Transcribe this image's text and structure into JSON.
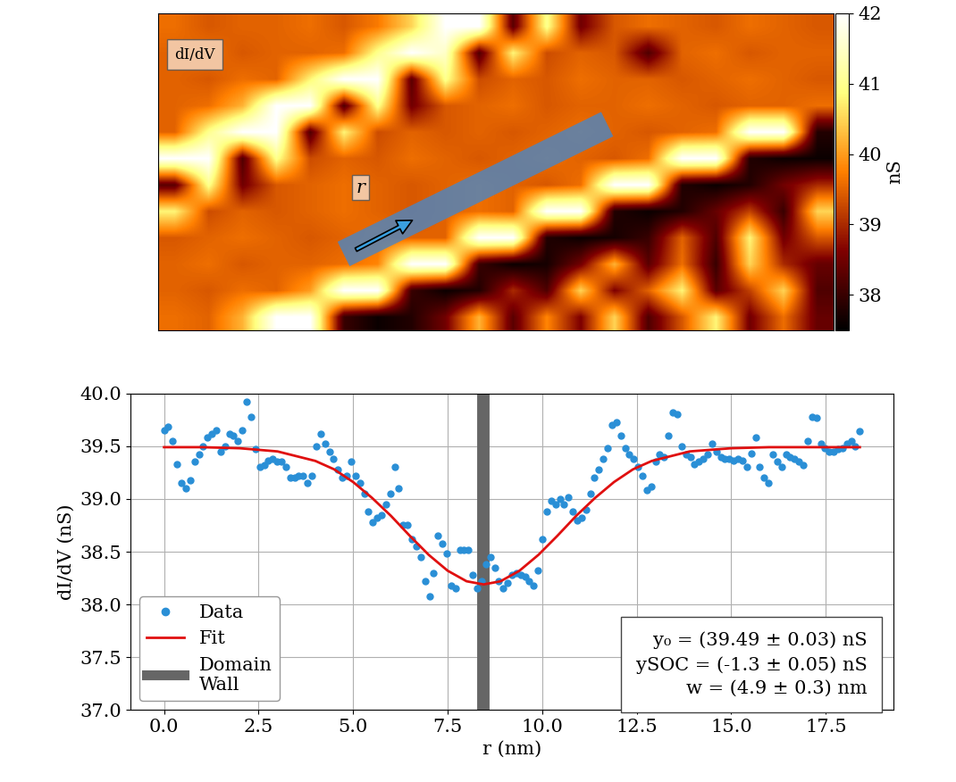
{
  "chart_data": [
    {
      "type": "heatmap",
      "tick_labels": false,
      "annotations": [
        "dI/dV",
        "r"
      ],
      "colorbar": {
        "label": "nS",
        "range": [
          37.5,
          42
        ],
        "ticks": [
          38,
          39,
          40,
          41,
          42
        ]
      },
      "cells": [
        [
          39.6,
          39.4,
          39.5,
          39.5,
          39.6,
          39.4,
          39.7,
          40.5,
          42.0,
          42.0,
          38.3,
          41.0,
          38.5,
          39.4,
          39.6,
          39.5,
          39.4,
          39.6,
          39.5,
          39.4
        ],
        [
          39.5,
          39.6,
          39.4,
          39.5,
          39.5,
          39.6,
          41.0,
          42.0,
          41.5,
          38.2,
          40.8,
          39.3,
          39.5,
          39.4,
          38.2,
          39.5,
          39.6,
          39.4,
          39.5,
          39.5
        ],
        [
          39.5,
          39.4,
          39.6,
          39.5,
          40.8,
          42.0,
          42.0,
          38.3,
          41.0,
          39.3,
          39.5,
          39.4,
          39.6,
          39.5,
          39.5,
          39.4,
          39.5,
          39.6,
          39.5,
          39.4
        ],
        [
          39.5,
          39.6,
          40.2,
          42.0,
          42.0,
          38.2,
          41.0,
          38.5,
          39.4,
          39.5,
          39.6,
          39.4,
          39.5,
          39.5,
          39.6,
          39.5,
          39.4,
          39.5,
          39.5,
          39.6
        ],
        [
          39.5,
          41.0,
          42.0,
          42.0,
          38.2,
          40.8,
          39.3,
          39.5,
          39.4,
          39.5,
          39.4,
          39.5,
          39.6,
          39.5,
          39.4,
          39.5,
          39.6,
          42.0,
          42.0,
          37.8
        ],
        [
          42.0,
          42.0,
          38.2,
          41.0,
          39.3,
          39.5,
          39.4,
          39.6,
          39.5,
          39.4,
          39.5,
          39.6,
          39.5,
          39.4,
          39.6,
          42.0,
          42.0,
          37.8,
          37.6,
          37.6
        ],
        [
          38.3,
          41.0,
          38.5,
          39.4,
          39.5,
          39.6,
          39.5,
          39.4,
          39.5,
          39.6,
          39.5,
          39.4,
          39.6,
          42.0,
          42.0,
          37.8,
          37.6,
          37.8,
          38.5,
          39.0
        ],
        [
          40.8,
          39.3,
          39.5,
          39.4,
          39.5,
          39.6,
          39.5,
          39.4,
          39.5,
          39.6,
          39.5,
          42.0,
          42.0,
          37.8,
          37.6,
          37.8,
          38.4,
          39.2,
          38.0,
          40.5
        ],
        [
          39.4,
          39.5,
          39.6,
          39.5,
          39.4,
          39.5,
          39.6,
          39.5,
          39.5,
          42.0,
          42.0,
          37.8,
          37.6,
          37.7,
          38.0,
          39.5,
          38.2,
          40.8,
          38.5,
          39.4
        ],
        [
          39.5,
          39.6,
          39.4,
          39.5,
          39.5,
          39.6,
          39.8,
          42.0,
          42.0,
          38.0,
          37.6,
          37.7,
          38.5,
          40.2,
          38.3,
          39.6,
          38.0,
          40.5,
          39.0,
          38.4
        ],
        [
          39.5,
          39.4,
          39.6,
          39.5,
          40.0,
          42.0,
          42.0,
          38.0,
          37.6,
          37.8,
          39.0,
          38.2,
          40.5,
          38.6,
          39.5,
          40.8,
          38.3,
          39.2,
          40.5,
          38.2
        ],
        [
          39.6,
          39.5,
          40.2,
          42.0,
          42.0,
          38.0,
          37.6,
          37.8,
          38.5,
          40.2,
          38.3,
          39.8,
          38.6,
          40.5,
          38.2,
          39.4,
          40.8,
          38.5,
          39.6,
          38.4
        ]
      ]
    },
    {
      "type": "scatter",
      "x_label": "r (nm)",
      "y_label": "dI/dV (nS)",
      "xlim": [
        -0.9,
        19.3
      ],
      "ylim": [
        37.0,
        40.0
      ],
      "xticks": [
        {
          "value": 0,
          "label": "0.0"
        },
        2.5,
        {
          "value": 5,
          "label": "5.0"
        },
        7.5,
        {
          "value": 10,
          "label": "10.0"
        },
        12.5,
        {
          "value": 15,
          "label": "15.0"
        },
        17.5
      ],
      "yticks": [
        {
          "value": 37,
          "label": "37.0"
        },
        37.5,
        {
          "value": 38,
          "label": "38.0"
        },
        38.5,
        {
          "value": 39,
          "label": "39.0"
        },
        39.5,
        {
          "value": 40,
          "label": "40.0"
        }
      ],
      "grid": true,
      "legend": "lower left",
      "annotations": [
        "y₀ = (39.49 ± 0.03) nS",
        "ySOC = (-1.3 ± 0.05) nS",
        "w = (4.9 ± 0.3) nm"
      ],
      "series": [
        {
          "name": "Data",
          "type": "scatter",
          "color": "#2a8fd6",
          "marker": "o",
          "x": [
            0,
            0.115,
            0.23,
            0.345,
            0.46,
            0.575,
            0.69,
            0.805,
            0.92,
            1.035,
            1.15,
            1.265,
            1.38,
            1.495,
            1.61,
            1.725,
            1.84,
            1.955,
            2.07,
            2.185,
            2.3,
            2.415,
            2.53,
            2.645,
            2.76,
            2.875,
            2.99,
            3.105,
            3.22,
            3.335,
            3.45,
            3.565,
            3.68,
            3.795,
            3.91,
            4.025,
            4.14,
            4.255,
            4.37,
            4.485,
            4.6,
            4.715,
            4.83,
            4.945,
            5.06,
            5.175,
            5.29,
            5.405,
            5.52,
            5.635,
            5.75,
            5.865,
            5.98,
            6.095,
            6.21,
            6.325,
            6.44,
            6.555,
            6.67,
            6.785,
            6.9,
            7.015,
            7.13,
            7.245,
            7.36,
            7.475,
            7.59,
            7.705,
            7.82,
            7.935,
            8.05,
            8.165,
            8.28,
            8.395,
            8.51,
            8.625,
            8.74,
            8.855,
            8.97,
            9.085,
            9.2,
            9.315,
            9.43,
            9.545,
            9.66,
            9.775,
            9.89,
            10.005,
            10.12,
            10.235,
            10.35,
            10.465,
            10.58,
            10.695,
            10.81,
            10.925,
            11.04,
            11.155,
            11.27,
            11.385,
            11.5,
            11.615,
            11.73,
            11.845,
            11.96,
            12.075,
            12.19,
            12.305,
            12.42,
            12.535,
            12.65,
            12.765,
            12.88,
            12.995,
            13.11,
            13.225,
            13.34,
            13.455,
            13.57,
            13.685,
            13.8,
            13.915,
            14.03,
            14.145,
            14.26,
            14.375,
            14.49,
            14.605,
            14.72,
            14.835,
            14.95,
            15.065,
            15.18,
            15.295,
            15.41,
            15.525,
            15.64,
            15.755,
            15.87,
            15.985,
            16.1,
            16.215,
            16.33,
            16.445,
            16.56,
            16.675,
            16.79,
            16.905,
            17.02,
            17.135,
            17.25,
            17.365,
            17.48,
            17.595,
            17.71,
            17.825,
            17.94,
            18.055,
            18.17,
            18.285,
            18.4
          ],
          "values": [
            39.65,
            39.68,
            39.55,
            39.33,
            39.15,
            39.1,
            39.18,
            39.35,
            39.42,
            39.5,
            39.58,
            39.62,
            39.65,
            39.45,
            39.5,
            39.62,
            39.6,
            39.55,
            39.65,
            39.92,
            39.78,
            39.47,
            39.3,
            39.32,
            39.36,
            39.38,
            39.35,
            39.35,
            39.3,
            39.2,
            39.2,
            39.22,
            39.22,
            39.15,
            39.22,
            39.5,
            39.62,
            39.52,
            39.45,
            39.38,
            39.28,
            39.2,
            39.22,
            39.35,
            39.22,
            39.15,
            39.05,
            38.88,
            38.78,
            38.82,
            38.85,
            38.95,
            39.05,
            39.3,
            39.1,
            38.75,
            38.75,
            38.62,
            38.55,
            38.45,
            38.22,
            38.08,
            38.3,
            38.65,
            38.58,
            38.48,
            38.18,
            38.15,
            38.52,
            38.52,
            38.52,
            38.28,
            38.15,
            38.22,
            38.38,
            38.45,
            38.35,
            38.22,
            38.15,
            38.2,
            38.28,
            38.3,
            38.28,
            38.26,
            38.22,
            38.18,
            38.32,
            38.62,
            38.88,
            38.98,
            38.95,
            39.0,
            38.95,
            39.02,
            38.88,
            38.8,
            38.82,
            38.9,
            39.05,
            39.2,
            39.28,
            39.38,
            39.48,
            39.7,
            39.73,
            39.6,
            39.48,
            39.42,
            39.38,
            39.3,
            39.22,
            39.08,
            39.12,
            39.35,
            39.42,
            39.4,
            39.6,
            39.82,
            39.8,
            39.5,
            39.42,
            39.4,
            39.33,
            39.35,
            39.38,
            39.42,
            39.52,
            39.45,
            39.4,
            39.38,
            39.38,
            39.36,
            39.38,
            39.36,
            39.3,
            39.43,
            39.58,
            39.3,
            39.2,
            39.15,
            39.42,
            39.35,
            39.3,
            39.42,
            39.4,
            39.38,
            39.35,
            39.32,
            39.55,
            39.78,
            39.77,
            39.52,
            39.48,
            39.45,
            39.45,
            39.47,
            39.48,
            39.52,
            39.55,
            39.5,
            39.64
          ]
        },
        {
          "name": "Fit",
          "type": "line",
          "color": "#e01010",
          "line_style": "solid",
          "x": [
            0,
            1,
            2,
            3,
            4,
            4.5,
            5,
            5.5,
            6,
            6.5,
            7,
            7.5,
            8,
            8.45,
            8.9,
            9.4,
            9.9,
            10.4,
            10.9,
            11.4,
            11.9,
            12.4,
            12.9,
            13.9,
            15,
            16,
            17,
            18.4
          ],
          "values": [
            39.49,
            39.49,
            39.48,
            39.45,
            39.36,
            39.28,
            39.16,
            39.01,
            38.84,
            38.65,
            38.47,
            38.32,
            38.22,
            38.19,
            38.22,
            38.32,
            38.47,
            38.65,
            38.84,
            39.01,
            39.16,
            39.28,
            39.36,
            39.45,
            39.48,
            39.49,
            39.49,
            39.49
          ]
        },
        {
          "name": "Domain\nWall",
          "type": "vline",
          "color": "#666666",
          "x": [
            8.45
          ]
        }
      ]
    }
  ]
}
